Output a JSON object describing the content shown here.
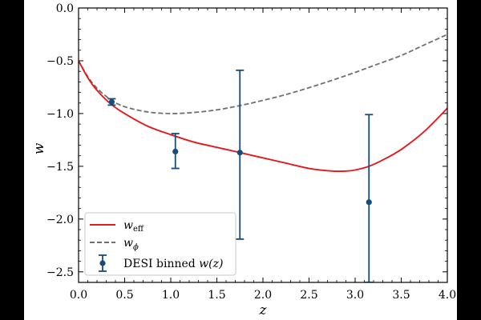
{
  "chart_data": {
    "type": "line",
    "title": "",
    "xlabel": "z",
    "ylabel": "w",
    "xlim": [
      0.0,
      4.0
    ],
    "ylim": [
      -2.6,
      0.0
    ],
    "x_ticks": [
      0.0,
      0.5,
      1.0,
      1.5,
      2.0,
      2.5,
      3.0,
      3.5,
      4.0
    ],
    "x_tick_labels": [
      "0.0",
      "0.5",
      "1.0",
      "1.5",
      "2.0",
      "2.5",
      "3.0",
      "3.5",
      "4.0"
    ],
    "y_ticks": [
      0.0,
      -0.5,
      -1.0,
      -1.5,
      -2.0,
      -2.5
    ],
    "y_tick_labels": [
      "0.0",
      "−0.5",
      "−1.0",
      "−1.5",
      "−2.0",
      "−2.5"
    ],
    "series": [
      {
        "name": "w_eff",
        "label_base": "w",
        "label_sub": "eff",
        "style": "solid",
        "color": "#e3191c",
        "x": [
          0.0,
          0.1,
          0.2,
          0.35,
          0.5,
          0.75,
          1.0,
          1.25,
          1.5,
          1.75,
          2.0,
          2.25,
          2.5,
          2.75,
          2.9,
          3.0,
          3.15,
          3.3,
          3.5,
          3.75,
          4.0
        ],
        "y": [
          -0.5,
          -0.66,
          -0.78,
          -0.91,
          -1.0,
          -1.12,
          -1.2,
          -1.27,
          -1.32,
          -1.37,
          -1.42,
          -1.47,
          -1.52,
          -1.545,
          -1.545,
          -1.535,
          -1.5,
          -1.44,
          -1.34,
          -1.17,
          -0.95
        ]
      },
      {
        "name": "w_phi",
        "label_base": "w",
        "label_sub": "ϕ",
        "style": "dashed",
        "color": "#707070",
        "x": [
          0.0,
          0.1,
          0.2,
          0.35,
          0.5,
          0.75,
          1.0,
          1.25,
          1.5,
          1.75,
          2.0,
          2.25,
          2.5,
          2.75,
          3.0,
          3.25,
          3.5,
          3.75,
          4.0
        ],
        "y": [
          -0.5,
          -0.65,
          -0.76,
          -0.87,
          -0.935,
          -0.985,
          -1.0,
          -0.99,
          -0.965,
          -0.925,
          -0.875,
          -0.82,
          -0.755,
          -0.685,
          -0.61,
          -0.53,
          -0.45,
          -0.35,
          -0.25
        ]
      }
    ],
    "errorbar_series": {
      "name": "DESI binned w(z)",
      "label_prefix": "DESI binned ",
      "label_math": "w(z)",
      "color": "#174d7b",
      "points": [
        {
          "x": 0.36,
          "y": -0.89,
          "y_low": -0.92,
          "y_high": -0.86
        },
        {
          "x": 1.05,
          "y": -1.36,
          "y_low": -1.52,
          "y_high": -1.19
        },
        {
          "x": 1.75,
          "y": -1.37,
          "y_low": -2.19,
          "y_high": -0.59
        },
        {
          "x": 3.15,
          "y": -1.84,
          "y_low": -2.6,
          "y_high": -1.01
        }
      ]
    },
    "legend_position": "lower-left",
    "grid": false
  }
}
